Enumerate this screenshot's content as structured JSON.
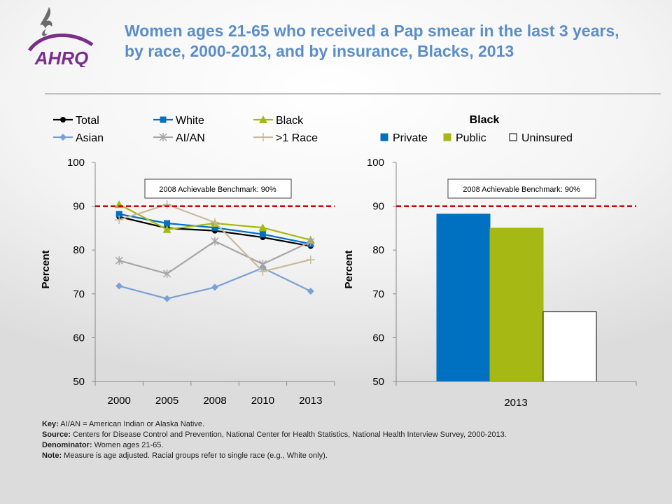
{
  "header": {
    "title": "Women ages 21-65 who received a Pap smear in the last 3 years, by race, 2000-2013, and by insurance, Blacks, 2013",
    "logo_text": "AHRQ"
  },
  "colors": {
    "title": "#5b8ec9",
    "benchmark": "#c00000",
    "total": "#000000",
    "white": "#0070c0",
    "black": "#a6b814",
    "asian": "#7aa0d6",
    "aian": "#a6a6a6",
    "multi": "#c9b99a",
    "private": "#0070c0",
    "public": "#a6b814",
    "uninsured": "#ffffff"
  },
  "chart_data": [
    {
      "type": "line",
      "x": [
        "2000",
        "2005",
        "2008",
        "2010",
        "2013"
      ],
      "ylabel": "Percent",
      "ylim": [
        50,
        100
      ],
      "yticks": [
        "50",
        "60",
        "70",
        "80",
        "90",
        "100"
      ],
      "benchmark": {
        "value": 90,
        "label": "2008 Achievable Benchmark: 90%"
      },
      "legend_placement": "top",
      "series": [
        {
          "name": "Total",
          "marker": "circle",
          "color": "#000000",
          "values": [
            87.6,
            85.0,
            84.4,
            82.9,
            80.9
          ]
        },
        {
          "name": "White",
          "marker": "square",
          "color": "#0070c0",
          "values": [
            88.2,
            86.1,
            85.1,
            83.6,
            81.4
          ]
        },
        {
          "name": "Black",
          "marker": "triangle",
          "color": "#a6b814",
          "values": [
            90.4,
            84.7,
            86.1,
            85.1,
            82.3
          ]
        },
        {
          "name": "Asian",
          "marker": "diamond",
          "color": "#7aa0d6",
          "values": [
            71.8,
            68.9,
            71.5,
            75.9,
            70.6
          ]
        },
        {
          "name": "AI/AN",
          "marker": "star",
          "color": "#a6a6a6",
          "values": [
            77.6,
            74.6,
            82.0,
            76.8,
            81.9
          ]
        },
        {
          "name": ">1 Race",
          "marker": "plus",
          "color": "#c9b99a",
          "values": [
            86.9,
            90.4,
            86.3,
            75.1,
            77.8
          ]
        }
      ]
    },
    {
      "type": "bar",
      "title": "Black",
      "categories": [
        "2013"
      ],
      "ylabel": "Percent",
      "ylim": [
        50,
        100
      ],
      "yticks": [
        "50",
        "60",
        "70",
        "80",
        "90",
        "100"
      ],
      "benchmark": {
        "value": 90,
        "label": "2008 Achievable Benchmark: 90%"
      },
      "legend_placement": "top",
      "series": [
        {
          "name": "Private",
          "color": "#0070c0",
          "values": [
            88.2
          ]
        },
        {
          "name": "Public",
          "color": "#a6b814",
          "values": [
            85.0
          ]
        },
        {
          "name": "Uninsured",
          "color": "#ffffff",
          "values": [
            65.9
          ]
        }
      ]
    }
  ],
  "notes": {
    "key_label": "Key:",
    "key_text": "AI/AN = American Indian or Alaska Native.",
    "source_label": "Source:",
    "source_text": "Centers for Disease Control and Prevention, National Center for Health Statistics, National Health Interview Survey, 2000-2013.",
    "denominator_label": "Denominator:",
    "denominator_text": "Women ages 21-65.",
    "note_label": "Note:",
    "note_text": "Measure is age adjusted. Racial groups refer to single race (e.g., White only)."
  }
}
